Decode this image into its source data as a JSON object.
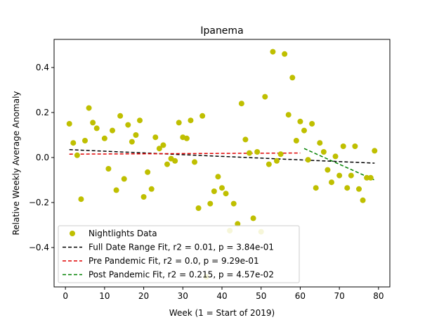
{
  "chart_data": {
    "type": "scatter",
    "title": "Ipanema",
    "xlabel": "Week (1 = Start of 2019)",
    "ylabel": "Relative Weekly Average Anomaly",
    "xlim": [
      -2.9,
      82.9
    ],
    "ylim": [
      -0.575,
      0.525
    ],
    "x_ticks": [
      0,
      10,
      20,
      30,
      40,
      50,
      60,
      70,
      80
    ],
    "y_ticks": [
      -0.4,
      -0.2,
      0.0,
      0.2,
      0.4
    ],
    "y_tick_labels": [
      "−0.4",
      "−0.2",
      "0.0",
      "0.2",
      "0.4"
    ],
    "legend_position": "lower-left",
    "grid": false,
    "series": [
      {
        "name": "Nightlights Data",
        "kind": "points",
        "color": "#bfbf00",
        "points": [
          {
            "x": 1,
            "y": 0.15
          },
          {
            "x": 2,
            "y": 0.065
          },
          {
            "x": 3,
            "y": 0.01
          },
          {
            "x": 4,
            "y": -0.185
          },
          {
            "x": 5,
            "y": 0.075
          },
          {
            "x": 6,
            "y": 0.22
          },
          {
            "x": 7,
            "y": 0.155
          },
          {
            "x": 8,
            "y": 0.13
          },
          {
            "x": 10,
            "y": 0.085
          },
          {
            "x": 11,
            "y": -0.05
          },
          {
            "x": 12,
            "y": 0.12
          },
          {
            "x": 13,
            "y": -0.145
          },
          {
            "x": 14,
            "y": 0.185
          },
          {
            "x": 15,
            "y": -0.095
          },
          {
            "x": 16,
            "y": 0.145
          },
          {
            "x": 17,
            "y": 0.07
          },
          {
            "x": 18,
            "y": 0.1
          },
          {
            "x": 19,
            "y": 0.165
          },
          {
            "x": 20,
            "y": -0.175
          },
          {
            "x": 21,
            "y": -0.065
          },
          {
            "x": 22,
            "y": -0.14
          },
          {
            "x": 23,
            "y": 0.09
          },
          {
            "x": 24,
            "y": 0.04
          },
          {
            "x": 25,
            "y": 0.055
          },
          {
            "x": 26,
            "y": -0.03
          },
          {
            "x": 27,
            "y": -0.005
          },
          {
            "x": 28,
            "y": -0.015
          },
          {
            "x": 29,
            "y": 0.155
          },
          {
            "x": 30,
            "y": 0.09
          },
          {
            "x": 31,
            "y": 0.085
          },
          {
            "x": 32,
            "y": 0.165
          },
          {
            "x": 33,
            "y": -0.02
          },
          {
            "x": 34,
            "y": -0.225
          },
          {
            "x": 35,
            "y": 0.185
          },
          {
            "x": 36,
            "y": -0.53
          },
          {
            "x": 37,
            "y": -0.205
          },
          {
            "x": 38,
            "y": -0.15
          },
          {
            "x": 39,
            "y": -0.085
          },
          {
            "x": 40,
            "y": -0.135
          },
          {
            "x": 41,
            "y": -0.16
          },
          {
            "x": 42,
            "y": -0.325
          },
          {
            "x": 43,
            "y": -0.205
          },
          {
            "x": 44,
            "y": -0.295
          },
          {
            "x": 45,
            "y": 0.24
          },
          {
            "x": 46,
            "y": 0.08
          },
          {
            "x": 47,
            "y": 0.02
          },
          {
            "x": 48,
            "y": -0.27
          },
          {
            "x": 49,
            "y": 0.025
          },
          {
            "x": 50,
            "y": -0.33
          },
          {
            "x": 51,
            "y": 0.27
          },
          {
            "x": 52,
            "y": -0.03
          },
          {
            "x": 53,
            "y": 0.47
          },
          {
            "x": 54,
            "y": -0.015
          },
          {
            "x": 55,
            "y": 0.015
          },
          {
            "x": 56,
            "y": 0.46
          },
          {
            "x": 57,
            "y": 0.19
          },
          {
            "x": 58,
            "y": 0.355
          },
          {
            "x": 59,
            "y": 0.075
          },
          {
            "x": 60,
            "y": 0.16
          },
          {
            "x": 61,
            "y": 0.12
          },
          {
            "x": 62,
            "y": -0.01
          },
          {
            "x": 63,
            "y": 0.15
          },
          {
            "x": 64,
            "y": -0.135
          },
          {
            "x": 65,
            "y": 0.065
          },
          {
            "x": 66,
            "y": 0.025
          },
          {
            "x": 67,
            "y": -0.055
          },
          {
            "x": 68,
            "y": -0.11
          },
          {
            "x": 69,
            "y": 0.005
          },
          {
            "x": 70,
            "y": -0.08
          },
          {
            "x": 71,
            "y": 0.05
          },
          {
            "x": 72,
            "y": -0.135
          },
          {
            "x": 73,
            "y": -0.08
          },
          {
            "x": 74,
            "y": 0.05
          },
          {
            "x": 75,
            "y": -0.14
          },
          {
            "x": 76,
            "y": -0.19
          },
          {
            "x": 77,
            "y": -0.09
          },
          {
            "x": 78,
            "y": -0.09
          },
          {
            "x": 79,
            "y": 0.03
          }
        ]
      },
      {
        "name": "Full Date Range Fit, r2 = 0.01, p = 3.84e-01",
        "kind": "fit",
        "color": "#000000",
        "x": [
          1,
          79
        ],
        "y": [
          0.035,
          -0.025
        ]
      },
      {
        "name": "Pre Pandemic Fit, r2 = 0.0, p = 9.29e-01",
        "kind": "fit",
        "color": "#e00000",
        "x": [
          1,
          60
        ],
        "y": [
          0.015,
          0.02
        ]
      },
      {
        "name": "Post Pandemic Fit, r2 = 0.215, p = 4.57e-02",
        "kind": "fit",
        "color": "#008000",
        "x": [
          61,
          79
        ],
        "y": [
          0.04,
          -0.1
        ]
      }
    ]
  }
}
